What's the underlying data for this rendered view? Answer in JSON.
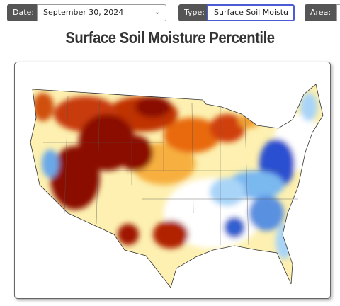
{
  "controls": {
    "date": {
      "label": "Date:",
      "value": "September 30, 2024"
    },
    "type": {
      "label": "Type:",
      "value": "Surface Soil Moistu"
    },
    "area": {
      "label": "Area:"
    }
  },
  "title": "Surface Soil Moisture Percentile"
}
